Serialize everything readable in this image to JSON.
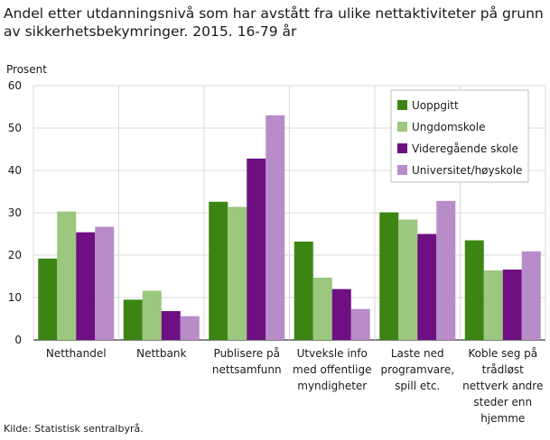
{
  "title": "Andel etter utdanningsnivå som har avstått fra ulike nettaktiviteter på grunn av sikkerhetsbekymringer. 2015. 16-79 år",
  "source": "Kilde: Statistisk sentralbyrå.",
  "chart_data": {
    "type": "bar",
    "ylabel": "Prosent",
    "ylim": [
      0,
      60
    ],
    "yticks": [
      0,
      10,
      20,
      30,
      40,
      50,
      60
    ],
    "grid": true,
    "legend_position": "top-right",
    "categories": [
      [
        "Netthandel"
      ],
      [
        "Nettbank"
      ],
      [
        "Publisere på",
        "nettsamfunn"
      ],
      [
        "Utveksle info",
        "med offentlige",
        "myndigheter"
      ],
      [
        "Laste ned",
        "programvare,",
        "spill etc."
      ],
      [
        "Koble seg på",
        "trådløst",
        "nettverk andre",
        "steder enn",
        "hjemme"
      ]
    ],
    "series": [
      {
        "name": "Uoppgitt",
        "color": "#3c8512",
        "values": [
          19.2,
          9.5,
          32.6,
          23.2,
          30.1,
          23.5
        ]
      },
      {
        "name": "Ungdomskole",
        "color": "#9cc77e",
        "values": [
          30.3,
          11.6,
          31.4,
          14.7,
          28.4,
          16.4
        ]
      },
      {
        "name": "Videregående skole",
        "color": "#6e0f82",
        "values": [
          25.4,
          6.8,
          42.8,
          12.0,
          25.0,
          16.6
        ]
      },
      {
        "name": "Universitet/høyskole",
        "color": "#b88cc8",
        "values": [
          26.7,
          5.6,
          53.0,
          7.3,
          32.8,
          20.9
        ]
      }
    ]
  }
}
